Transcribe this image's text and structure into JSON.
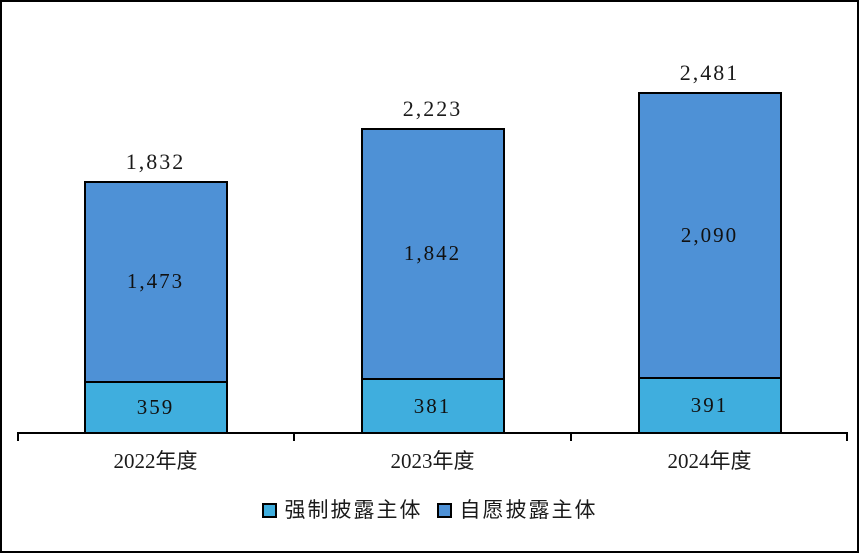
{
  "chart_data": {
    "type": "bar",
    "stacked": true,
    "title": "",
    "xlabel": "",
    "ylabel": "",
    "categories": [
      "2022年度",
      "2023年度",
      "2024年度"
    ],
    "series": [
      {
        "name": "强制披露主体",
        "values": [
          359,
          381,
          391
        ],
        "color": "#3FAEDE"
      },
      {
        "name": "自愿披露主体",
        "values": [
          1473,
          1842,
          2090
        ],
        "color": "#4E91D6"
      }
    ],
    "totals": [
      1832,
      2223,
      2481
    ],
    "labels": {
      "totals": [
        "1,832",
        "2,223",
        "2,481"
      ],
      "mandatory": [
        "359",
        "381",
        "391"
      ],
      "voluntary": [
        "1,473",
        "1,842",
        "2,090"
      ]
    },
    "ylim": [
      0,
      3160
    ],
    "grid": false,
    "legend_position": "bottom",
    "outline_color": "#000000",
    "background": "#FFFFFF"
  }
}
